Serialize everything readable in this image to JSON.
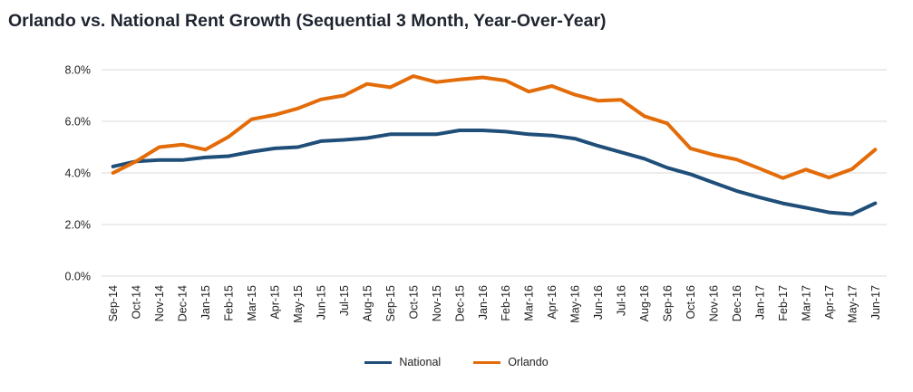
{
  "title": "Orlando vs. National Rent Growth (Sequential 3 Month, Year-Over-Year)",
  "chart_data": {
    "type": "line",
    "title": "Orlando vs. National Rent Growth (Sequential 3 Month, Year-Over-Year)",
    "xlabel": "",
    "ylabel": "",
    "ylim": [
      0,
      8
    ],
    "yticks": [
      "0.0%",
      "2.0%",
      "4.0%",
      "6.0%",
      "8.0%"
    ],
    "grid": true,
    "legend_position": "bottom",
    "categories": [
      "Sep-14",
      "Oct-14",
      "Nov-14",
      "Dec-14",
      "Jan-15",
      "Feb-15",
      "Mar-15",
      "Apr-15",
      "May-15",
      "Jun-15",
      "Jul-15",
      "Aug-15",
      "Sep-15",
      "Oct-15",
      "Nov-15",
      "Dec-15",
      "Jan-16",
      "Feb-16",
      "Mar-16",
      "Apr-16",
      "May-16",
      "Jun-16",
      "Jul-16",
      "Aug-16",
      "Sep-16",
      "Oct-16",
      "Nov-16",
      "Dec-16",
      "Jan-17",
      "Feb-17",
      "Mar-17",
      "Apr-17",
      "May-17",
      "Jun-17"
    ],
    "series": [
      {
        "name": "National",
        "color": "#1f4e79",
        "values": [
          4.25,
          4.45,
          4.5,
          4.5,
          4.6,
          4.65,
          4.82,
          4.95,
          5.0,
          5.23,
          5.28,
          5.35,
          5.5,
          5.5,
          5.5,
          5.65,
          5.65,
          5.6,
          5.5,
          5.45,
          5.33,
          5.05,
          4.8,
          4.55,
          4.2,
          3.95,
          3.62,
          3.3,
          3.05,
          2.82,
          2.65,
          2.47,
          2.4,
          2.82
        ]
      },
      {
        "name": "Orlando",
        "color": "#e36c09",
        "values": [
          4.0,
          4.45,
          5.0,
          5.1,
          4.9,
          5.4,
          6.08,
          6.25,
          6.5,
          6.85,
          7.0,
          7.45,
          7.32,
          7.75,
          7.52,
          7.62,
          7.7,
          7.58,
          7.15,
          7.37,
          7.03,
          6.8,
          6.83,
          6.2,
          5.92,
          4.95,
          4.7,
          4.52,
          4.17,
          3.8,
          4.13,
          3.82,
          4.15,
          4.9
        ]
      }
    ]
  }
}
